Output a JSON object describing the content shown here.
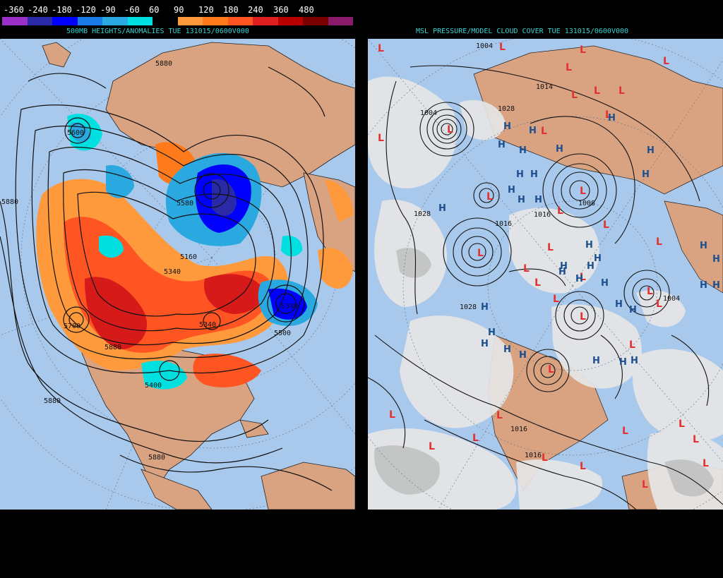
{
  "legend": {
    "labels": [
      "-360",
      "-240",
      "-180",
      "-120",
      "-90",
      "-60",
      "60",
      "90",
      "120",
      "180",
      "240",
      "360",
      "480"
    ],
    "colors": [
      "#9b30c8",
      "#2a2aa8",
      "#0000ff",
      "#1a7ae6",
      "#2aa9e0",
      "#00e0e0",
      "#000000",
      "#ff9a3c",
      "#ff7a1a",
      "#ff5522",
      "#e02020",
      "#b80000",
      "#7a0000",
      "#8a1a6a"
    ]
  },
  "left_panel": {
    "title": "500MB HEIGHTS/ANOMALIES TUE 131015/0600V000",
    "contour_labels": [
      "5880",
      "5880",
      "5880",
      "5880",
      "5880",
      "5160",
      "5340",
      "5340",
      "5340",
      "5500",
      "5700",
      "5400",
      "5600",
      "5580"
    ],
    "colors": {
      "ocean": "#a9c9ec",
      "land": "#d9a382",
      "contour": "#111111"
    }
  },
  "right_panel": {
    "title": "MSL PRESSURE/MODEL CLOUD COVER TUE 131015/0600V000",
    "isobar_labels": [
      "1004",
      "1028",
      "1028",
      "1014",
      "1016",
      "1028",
      "1004",
      "1016",
      "1016",
      "1008",
      "1004",
      "1016"
    ],
    "low_symbol": "L",
    "high_symbol": "H",
    "colors": {
      "ocean": "#a9c9ec",
      "land": "#d9a382",
      "cloud": "#e6e6e6",
      "low": "#e53030",
      "high": "#1c4f8f"
    }
  }
}
